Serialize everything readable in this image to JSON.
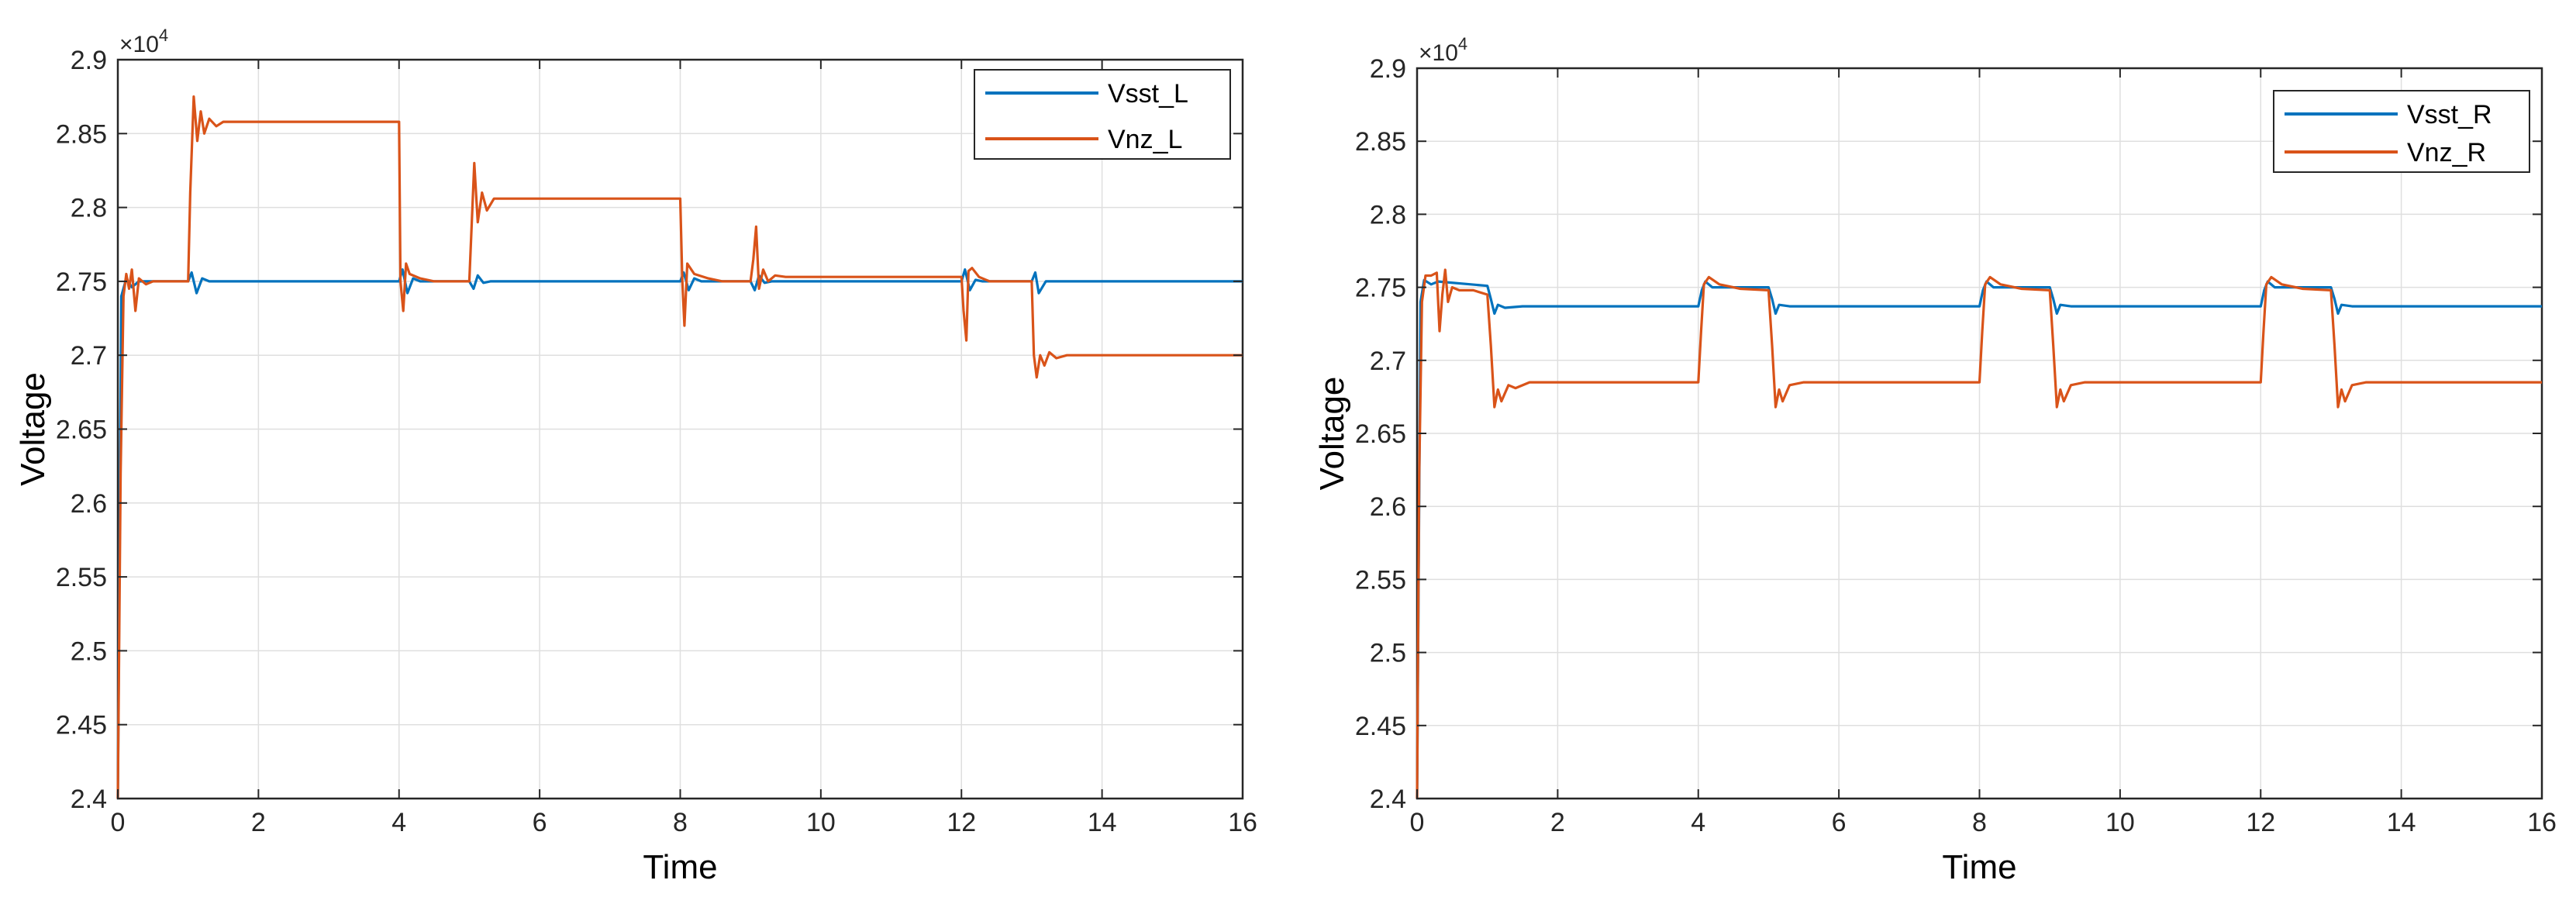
{
  "chart_data": [
    {
      "type": "line",
      "title": "",
      "xlabel": "Time",
      "ylabel": "Voltage",
      "exponent_base": "×10",
      "exponent_power": "4",
      "xlim": [
        0,
        16
      ],
      "ylim": [
        2.4,
        2.9
      ],
      "xticks": [
        0,
        2,
        4,
        6,
        8,
        10,
        12,
        14,
        16
      ],
      "yticks": [
        2.4,
        2.45,
        2.5,
        2.55,
        2.6,
        2.65,
        2.7,
        2.75,
        2.8,
        2.85,
        2.9
      ],
      "ytick_labels": [
        "2.4",
        "2.45",
        "2.5",
        "2.55",
        "2.6",
        "2.65",
        "2.7",
        "2.75",
        "2.8",
        "2.85",
        "2.9"
      ],
      "grid": true,
      "legend_position": "top-right",
      "series": [
        {
          "name": "Vsst_L",
          "color": "#0072BD",
          "points": [
            [
              0,
              2.4
            ],
            [
              0.05,
              2.74
            ],
            [
              0.12,
              2.752
            ],
            [
              0.2,
              2.746
            ],
            [
              0.3,
              2.75
            ],
            [
              1.0,
              2.75
            ],
            [
              1.05,
              2.756
            ],
            [
              1.12,
              2.742
            ],
            [
              1.2,
              2.752
            ],
            [
              1.3,
              2.75
            ],
            [
              4.0,
              2.75
            ],
            [
              4.05,
              2.758
            ],
            [
              4.12,
              2.742
            ],
            [
              4.2,
              2.752
            ],
            [
              4.3,
              2.75
            ],
            [
              5.0,
              2.75
            ],
            [
              5.06,
              2.745
            ],
            [
              5.12,
              2.754
            ],
            [
              5.2,
              2.749
            ],
            [
              5.3,
              2.75
            ],
            [
              8.0,
              2.75
            ],
            [
              8.05,
              2.756
            ],
            [
              8.12,
              2.744
            ],
            [
              8.2,
              2.752
            ],
            [
              8.3,
              2.75
            ],
            [
              9.0,
              2.75
            ],
            [
              9.06,
              2.744
            ],
            [
              9.12,
              2.754
            ],
            [
              9.2,
              2.749
            ],
            [
              9.3,
              2.75
            ],
            [
              12.0,
              2.75
            ],
            [
              12.05,
              2.758
            ],
            [
              12.12,
              2.744
            ],
            [
              12.2,
              2.751
            ],
            [
              12.3,
              2.75
            ],
            [
              13.0,
              2.75
            ],
            [
              13.05,
              2.756
            ],
            [
              13.1,
              2.742
            ],
            [
              13.2,
              2.75
            ],
            [
              16,
              2.75
            ]
          ]
        },
        {
          "name": "Vnz_L",
          "color": "#D95319",
          "points": [
            [
              0,
              2.4
            ],
            [
              0.04,
              2.62
            ],
            [
              0.08,
              2.74
            ],
            [
              0.12,
              2.755
            ],
            [
              0.16,
              2.745
            ],
            [
              0.2,
              2.758
            ],
            [
              0.25,
              2.73
            ],
            [
              0.3,
              2.752
            ],
            [
              0.4,
              2.748
            ],
            [
              0.5,
              2.75
            ],
            [
              1.0,
              2.75
            ],
            [
              1.03,
              2.81
            ],
            [
              1.08,
              2.875
            ],
            [
              1.13,
              2.845
            ],
            [
              1.18,
              2.865
            ],
            [
              1.23,
              2.85
            ],
            [
              1.3,
              2.86
            ],
            [
              1.4,
              2.855
            ],
            [
              1.5,
              2.858
            ],
            [
              2.0,
              2.858
            ],
            [
              4.0,
              2.858
            ],
            [
              4.02,
              2.75
            ],
            [
              4.06,
              2.73
            ],
            [
              4.1,
              2.762
            ],
            [
              4.15,
              2.755
            ],
            [
              4.3,
              2.752
            ],
            [
              4.5,
              2.75
            ],
            [
              5.0,
              2.75
            ],
            [
              5.03,
              2.785
            ],
            [
              5.07,
              2.83
            ],
            [
              5.12,
              2.79
            ],
            [
              5.18,
              2.81
            ],
            [
              5.25,
              2.798
            ],
            [
              5.35,
              2.806
            ],
            [
              5.5,
              2.806
            ],
            [
              8.0,
              2.806
            ],
            [
              8.03,
              2.75
            ],
            [
              8.06,
              2.72
            ],
            [
              8.1,
              2.762
            ],
            [
              8.2,
              2.755
            ],
            [
              8.4,
              2.752
            ],
            [
              8.6,
              2.75
            ],
            [
              9.0,
              2.75
            ],
            [
              9.04,
              2.765
            ],
            [
              9.08,
              2.787
            ],
            [
              9.12,
              2.745
            ],
            [
              9.18,
              2.758
            ],
            [
              9.25,
              2.75
            ],
            [
              9.35,
              2.754
            ],
            [
              9.5,
              2.753
            ],
            [
              12.0,
              2.753
            ],
            [
              12.03,
              2.73
            ],
            [
              12.07,
              2.71
            ],
            [
              12.1,
              2.757
            ],
            [
              12.15,
              2.759
            ],
            [
              12.25,
              2.753
            ],
            [
              12.4,
              2.75
            ],
            [
              13.0,
              2.75
            ],
            [
              13.03,
              2.7
            ],
            [
              13.07,
              2.685
            ],
            [
              13.12,
              2.7
            ],
            [
              13.18,
              2.693
            ],
            [
              13.25,
              2.702
            ],
            [
              13.35,
              2.698
            ],
            [
              13.5,
              2.7
            ],
            [
              16,
              2.7
            ]
          ]
        }
      ]
    },
    {
      "type": "line",
      "title": "",
      "xlabel": "Time",
      "ylabel": "Voltage",
      "exponent_base": "×10",
      "exponent_power": "4",
      "xlim": [
        0,
        16
      ],
      "ylim": [
        2.4,
        2.9
      ],
      "xticks": [
        0,
        2,
        4,
        6,
        8,
        10,
        12,
        14,
        16
      ],
      "yticks": [
        2.4,
        2.45,
        2.5,
        2.55,
        2.6,
        2.65,
        2.7,
        2.75,
        2.8,
        2.85,
        2.9
      ],
      "ytick_labels": [
        "2.4",
        "2.45",
        "2.5",
        "2.55",
        "2.6",
        "2.65",
        "2.7",
        "2.75",
        "2.8",
        "2.85",
        "2.9"
      ],
      "grid": true,
      "legend_position": "top-right",
      "series": [
        {
          "name": "Vsst_R",
          "color": "#0072BD",
          "points": [
            [
              0,
              2.4
            ],
            [
              0.05,
              2.74
            ],
            [
              0.1,
              2.755
            ],
            [
              0.2,
              2.752
            ],
            [
              0.3,
              2.754
            ],
            [
              1.0,
              2.751
            ],
            [
              1.05,
              2.742
            ],
            [
              1.1,
              2.732
            ],
            [
              1.15,
              2.738
            ],
            [
              1.25,
              2.736
            ],
            [
              1.5,
              2.737
            ],
            [
              4.0,
              2.737
            ],
            [
              4.05,
              2.748
            ],
            [
              4.1,
              2.754
            ],
            [
              4.2,
              2.75
            ],
            [
              4.4,
              2.75
            ],
            [
              5.0,
              2.75
            ],
            [
              5.05,
              2.742
            ],
            [
              5.1,
              2.732
            ],
            [
              5.15,
              2.738
            ],
            [
              5.3,
              2.737
            ],
            [
              8.0,
              2.737
            ],
            [
              8.05,
              2.748
            ],
            [
              8.1,
              2.754
            ],
            [
              8.2,
              2.75
            ],
            [
              8.4,
              2.75
            ],
            [
              9.0,
              2.75
            ],
            [
              9.05,
              2.742
            ],
            [
              9.1,
              2.732
            ],
            [
              9.15,
              2.738
            ],
            [
              9.3,
              2.737
            ],
            [
              12.0,
              2.737
            ],
            [
              12.05,
              2.748
            ],
            [
              12.1,
              2.754
            ],
            [
              12.2,
              2.75
            ],
            [
              12.4,
              2.75
            ],
            [
              13.0,
              2.75
            ],
            [
              13.05,
              2.742
            ],
            [
              13.1,
              2.732
            ],
            [
              13.15,
              2.738
            ],
            [
              13.3,
              2.737
            ],
            [
              16,
              2.737
            ]
          ]
        },
        {
          "name": "Vnz_R",
          "color": "#D95319",
          "points": [
            [
              0,
              2.4
            ],
            [
              0.03,
              2.62
            ],
            [
              0.07,
              2.74
            ],
            [
              0.12,
              2.758
            ],
            [
              0.2,
              2.758
            ],
            [
              0.28,
              2.76
            ],
            [
              0.32,
              2.72
            ],
            [
              0.36,
              2.745
            ],
            [
              0.4,
              2.762
            ],
            [
              0.44,
              2.74
            ],
            [
              0.5,
              2.75
            ],
            [
              0.6,
              2.748
            ],
            [
              0.8,
              2.748
            ],
            [
              1.0,
              2.745
            ],
            [
              1.05,
              2.71
            ],
            [
              1.1,
              2.668
            ],
            [
              1.15,
              2.68
            ],
            [
              1.2,
              2.672
            ],
            [
              1.3,
              2.683
            ],
            [
              1.4,
              2.681
            ],
            [
              1.6,
              2.685
            ],
            [
              4.0,
              2.685
            ],
            [
              4.04,
              2.72
            ],
            [
              4.08,
              2.752
            ],
            [
              4.15,
              2.757
            ],
            [
              4.3,
              2.752
            ],
            [
              4.6,
              2.749
            ],
            [
              5.0,
              2.748
            ],
            [
              5.05,
              2.71
            ],
            [
              5.1,
              2.668
            ],
            [
              5.15,
              2.68
            ],
            [
              5.2,
              2.672
            ],
            [
              5.3,
              2.683
            ],
            [
              5.5,
              2.685
            ],
            [
              8.0,
              2.685
            ],
            [
              8.04,
              2.72
            ],
            [
              8.08,
              2.752
            ],
            [
              8.15,
              2.757
            ],
            [
              8.3,
              2.752
            ],
            [
              8.6,
              2.749
            ],
            [
              9.0,
              2.748
            ],
            [
              9.05,
              2.71
            ],
            [
              9.1,
              2.668
            ],
            [
              9.15,
              2.68
            ],
            [
              9.2,
              2.672
            ],
            [
              9.3,
              2.683
            ],
            [
              9.5,
              2.685
            ],
            [
              12.0,
              2.685
            ],
            [
              12.04,
              2.72
            ],
            [
              12.08,
              2.752
            ],
            [
              12.15,
              2.757
            ],
            [
              12.3,
              2.752
            ],
            [
              12.6,
              2.749
            ],
            [
              13.0,
              2.748
            ],
            [
              13.05,
              2.71
            ],
            [
              13.1,
              2.668
            ],
            [
              13.15,
              2.68
            ],
            [
              13.2,
              2.672
            ],
            [
              13.3,
              2.683
            ],
            [
              13.5,
              2.685
            ],
            [
              16,
              2.685
            ]
          ]
        }
      ]
    }
  ]
}
